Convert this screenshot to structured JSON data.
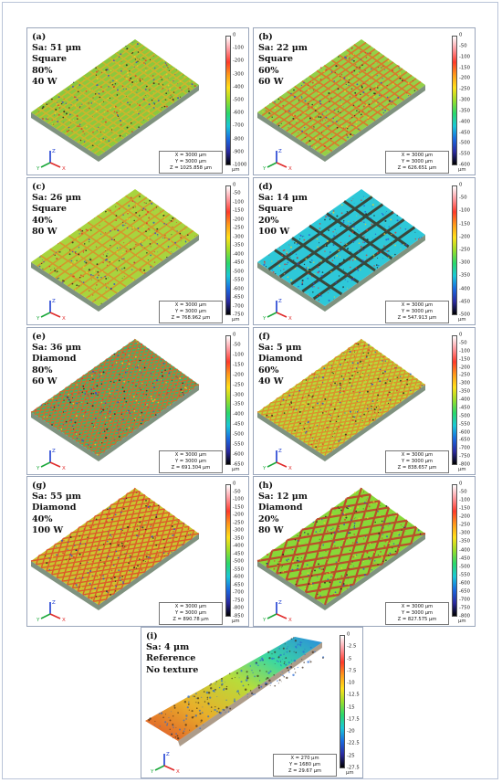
{
  "panels": [
    {
      "id": "a",
      "lines": [
        "(a)",
        "Sa: 51 μm",
        "Square",
        "80%",
        "40 W"
      ],
      "scale": {
        "ticks": [
          "0",
          "-100",
          "-200",
          "-300",
          "-400",
          "-500",
          "-600",
          "-700",
          "-800",
          "-900",
          "-1000"
        ],
        "unit": "μm"
      },
      "info": {
        "x": "X = 3000 μm",
        "y": "Y = 3000 μm",
        "z": "Z = 1025.858 μm"
      },
      "pattern": "square",
      "base": "#8dc83c",
      "line": "#d4b32c",
      "grid": 16
    },
    {
      "id": "b",
      "lines": [
        "(b)",
        "Sa: 22 μm",
        "Square",
        "60%",
        "60 W"
      ],
      "scale": {
        "ticks": [
          "0",
          "-50",
          "-100",
          "-150",
          "-200",
          "-250",
          "-300",
          "-350",
          "-400",
          "-450",
          "-500",
          "-550",
          "-600"
        ],
        "unit": "μm"
      },
      "info": {
        "x": "X = 3000 μm",
        "y": "Y = 3000 μm",
        "z": "Z = 626.651 μm"
      },
      "pattern": "square",
      "base": "#94d048",
      "line": "#e0712a",
      "grid": 14
    },
    {
      "id": "c",
      "lines": [
        "(c)",
        "Sa: 26 μm",
        "Square",
        "40%",
        "80 W"
      ],
      "scale": {
        "ticks": [
          "0",
          "-50",
          "-100",
          "-150",
          "-200",
          "-250",
          "-300",
          "-350",
          "-400",
          "-450",
          "-500",
          "-550",
          "-600",
          "-650",
          "-700",
          "-750"
        ],
        "unit": "μm"
      },
      "info": {
        "x": "X = 3000 μm",
        "y": "Y = 3000 μm",
        "z": "Z = 768.962 μm"
      },
      "pattern": "square",
      "base": "#a8d43e",
      "line": "#d9922c",
      "grid": 11
    },
    {
      "id": "d",
      "lines": [
        "(d)",
        "Sa: 14 μm",
        "Square",
        "20%",
        "100 W"
      ],
      "scale": {
        "ticks": [
          "0",
          "-50",
          "-100",
          "-150",
          "-200",
          "-250",
          "-300",
          "-350",
          "-400",
          "-450",
          "-500"
        ],
        "unit": "μm"
      },
      "info": {
        "x": "X = 3000 μm",
        "y": "Y = 3000 μm",
        "z": "Z = 547.913 μm"
      },
      "pattern": "square",
      "base": "#2ec8d8",
      "line": "#3a3a2a",
      "grid": 6
    },
    {
      "id": "e",
      "lines": [
        "(e)",
        "Sa: 36 μm",
        "Diamond",
        "80%",
        "60 W"
      ],
      "scale": {
        "ticks": [
          "0",
          "-50",
          "-100",
          "-150",
          "-200",
          "-250",
          "-300",
          "-350",
          "-400",
          "-450",
          "-500",
          "-550",
          "-600",
          "-650"
        ],
        "unit": "μm"
      },
      "info": {
        "x": "X = 3000 μm",
        "y": "Y = 3000 μm",
        "z": "Z = 691.304 μm"
      },
      "pattern": "diamond",
      "base": "#3ab86e",
      "line": "#d9662c",
      "grid": 18
    },
    {
      "id": "f",
      "lines": [
        "(f)",
        "Sa: 5 μm",
        "Diamond",
        "60%",
        "40 W"
      ],
      "scale": {
        "ticks": [
          "0",
          "-50",
          "-100",
          "-150",
          "-200",
          "-250",
          "-300",
          "-350",
          "-400",
          "-450",
          "-500",
          "-550",
          "-600",
          "-650",
          "-700",
          "-750",
          "-800"
        ],
        "unit": "μm"
      },
      "info": {
        "x": "X = 3000 μm",
        "y": "Y = 3000 μm",
        "z": "Z = 838.657 μm"
      },
      "pattern": "diamond",
      "base": "#b4dc3a",
      "line": "#e08a2c",
      "grid": 16
    },
    {
      "id": "g",
      "lines": [
        "(g)",
        "Sa: 55 μm",
        "Diamond",
        "40%",
        "100 W"
      ],
      "scale": {
        "ticks": [
          "0",
          "-50",
          "-100",
          "-150",
          "-200",
          "-250",
          "-300",
          "-350",
          "-400",
          "-450",
          "-500",
          "-550",
          "-600",
          "-650",
          "-700",
          "-750",
          "-800",
          "-850"
        ],
        "unit": "μm"
      },
      "info": {
        "x": "X = 3000 μm",
        "y": "Y = 3000 μm",
        "z": "Z = 890.78 μm"
      },
      "pattern": "diamond",
      "base": "#c8c430",
      "line": "#e0502a",
      "grid": 13
    },
    {
      "id": "h",
      "lines": [
        "(h)",
        "Sa: 12 μm",
        "Diamond",
        "20%",
        "80 W"
      ],
      "scale": {
        "ticks": [
          "0",
          "-50",
          "-100",
          "-150",
          "-200",
          "-250",
          "-300",
          "-350",
          "-400",
          "-450",
          "-500",
          "-550",
          "-600",
          "-650",
          "-700",
          "-750",
          "-800"
        ],
        "unit": "μm"
      },
      "info": {
        "x": "X = 3000 μm",
        "y": "Y = 3000 μm",
        "z": "Z = 827.575 μm"
      },
      "pattern": "diamond",
      "base": "#88d838",
      "line": "#c0402a",
      "grid": 7
    },
    {
      "id": "i",
      "lines": [
        "(i)",
        "Sa: 4 μm",
        "Reference",
        "No texture"
      ],
      "scale": {
        "ticks": [
          "0",
          "-2.5",
          "-5",
          "-7.5",
          "-10",
          "-12.5",
          "-15",
          "-17.5",
          "-20",
          "-22.5",
          "-25",
          "-27.5"
        ],
        "unit": "μm"
      },
      "info": {
        "x": "X = 270 μm",
        "y": "Y = 1680 μm",
        "z": "Z = 29.67 μm"
      },
      "pattern": "strip",
      "base": "#e07a2a",
      "line": "#3aa0e0",
      "grid": 0
    }
  ],
  "axis_labels": {
    "x": "X",
    "y": "Y",
    "z": "Z"
  },
  "colormap": [
    "#ffffff",
    "#ff9aa0",
    "#ff3a2a",
    "#ff9a1a",
    "#ffe01a",
    "#9ade2a",
    "#2ad86a",
    "#1ac8d8",
    "#1a6ae0",
    "#2a2aa0",
    "#000000"
  ]
}
